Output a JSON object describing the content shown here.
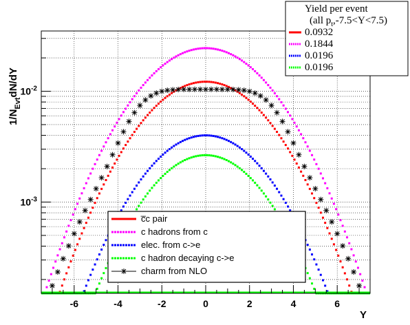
{
  "chart_data": {
    "type": "scatter",
    "xlabel": "Y",
    "ylabel": "1/N",
    "ylabel_sub": "Evt",
    "ylabel_tail": "dN/dY",
    "xlim": [
      -7.5,
      7.5
    ],
    "ylim": [
      0.00015,
      0.035
    ],
    "log_y": true,
    "grid": true,
    "x_ticks": [
      -6,
      -4,
      -2,
      0,
      2,
      4,
      6
    ],
    "x_tick_labels": [
      "-6",
      "-4",
      "-2",
      "0",
      "2",
      "4",
      "6"
    ],
    "y_ticks": [
      0.001,
      0.01
    ],
    "y_tick_labels": [
      {
        "base": "10",
        "exp": "-3"
      },
      {
        "base": "10",
        "exp": "-2"
      }
    ],
    "series": [
      {
        "name": "c̅c pair",
        "color": "#ff0000",
        "style": "dots",
        "peak": 0.0122,
        "sigma": 2.25,
        "flat": 0
      },
      {
        "name": "c hadrons from c",
        "color": "#ff00ff",
        "style": "dots",
        "peak": 0.0245,
        "sigma": 2.3,
        "flat": 0
      },
      {
        "name": "elec. from c->e",
        "color": "#0000ff",
        "style": "dots",
        "peak": 0.004,
        "sigma": 2.18,
        "flat": 0
      },
      {
        "name": "c hadron decaying c->e",
        "color": "#00ff00",
        "style": "dots",
        "peak": 0.00265,
        "sigma": 2.1,
        "flat": 0
      },
      {
        "name": "charm from NLO",
        "color": "#000000",
        "style": "stars",
        "peak": 0.0104,
        "sigma": 2.45,
        "flat": 0.6
      }
    ],
    "stats_box": {
      "title": "Yield per event",
      "subtitle_a": "(all p",
      "subtitle_sub": "t",
      "subtitle_b": ",-7.5<Y<7.5)",
      "entries": [
        {
          "color": "#ff0000",
          "value": "0.0932"
        },
        {
          "color": "#ff00ff",
          "value": "0.1844"
        },
        {
          "color": "#0000ff",
          "value": "0.0196"
        },
        {
          "color": "#00ff00",
          "value": "0.0196"
        }
      ]
    },
    "legend": {
      "position": "bottom-center",
      "entries": [
        {
          "label": "c̅c pair",
          "color": "#ff0000",
          "style": "solid"
        },
        {
          "label": "c hadrons from c",
          "color": "#ff00ff",
          "style": "dotted"
        },
        {
          "label": "elec. from c->e",
          "color": "#0000ff",
          "style": "dotted"
        },
        {
          "label": "c hadron decaying c->e",
          "color": "#00ff00",
          "style": "dotted"
        },
        {
          "label": "charm from NLO",
          "color": "#000000",
          "style": "star"
        }
      ]
    }
  }
}
